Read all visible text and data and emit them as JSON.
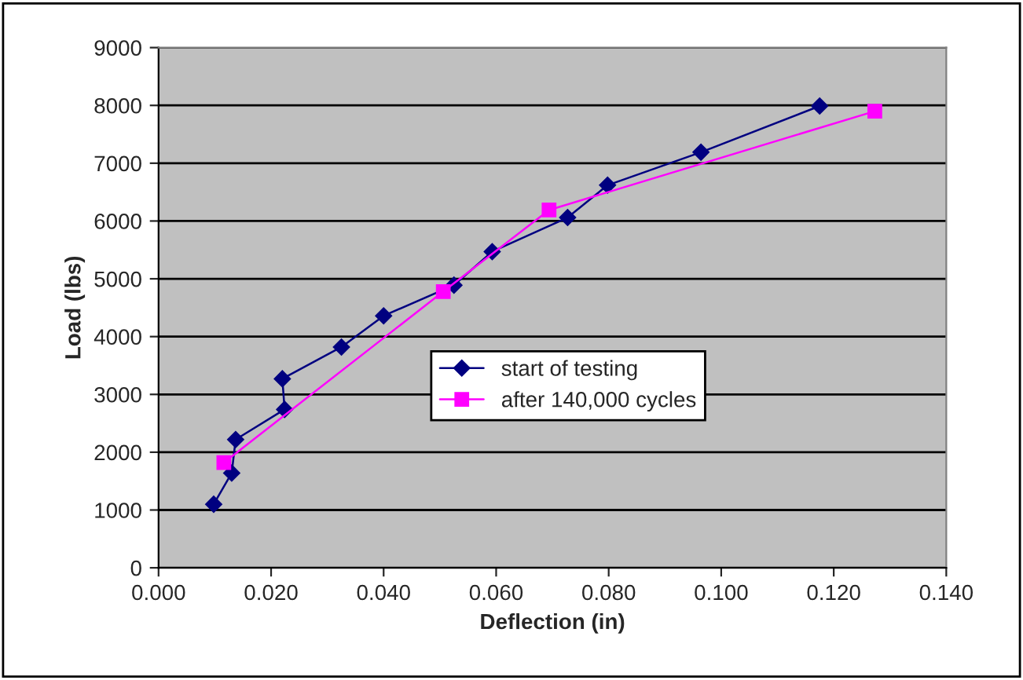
{
  "chart_data": {
    "type": "line",
    "xlabel": "Deflection (in)",
    "ylabel": "Load (lbs)",
    "xlim": [
      0,
      0.14
    ],
    "xticks": [
      {
        "value": 0,
        "label": "0.000"
      },
      {
        "value": 0.02,
        "label": "0.020"
      },
      {
        "value": 0.04,
        "label": "0.040"
      },
      {
        "value": 0.06,
        "label": "0.060"
      },
      {
        "value": 0.08,
        "label": "0.080"
      },
      {
        "value": 0.1,
        "label": "0.100"
      },
      {
        "value": 0.12,
        "label": "0.120"
      },
      {
        "value": 0.14,
        "label": "0.140"
      }
    ],
    "ylim": [
      0,
      9000
    ],
    "yticks": [
      0,
      1000,
      2000,
      3000,
      4000,
      5000,
      6000,
      7000,
      8000,
      9000
    ],
    "grid": "y",
    "legend": "center",
    "series": [
      {
        "name": "start of testing",
        "color": "#000080",
        "marker": "diamond",
        "x": [
          0.0098,
          0.013,
          0.0137,
          0.0224,
          0.022,
          0.0325,
          0.04,
          0.0525,
          0.0593,
          0.0727,
          0.0798,
          0.0964,
          0.1175
        ],
        "values": [
          1100,
          1640,
          2220,
          2740,
          3270,
          3820,
          4360,
          4890,
          5470,
          6060,
          6620,
          7190,
          7990
        ]
      },
      {
        "name": "after 140,000 cycles",
        "color": "#ff00ff",
        "marker": "square",
        "x": [
          0.0116,
          0.0506,
          0.0694,
          0.1273
        ],
        "values": [
          1820,
          4780,
          6190,
          7900
        ]
      }
    ]
  }
}
